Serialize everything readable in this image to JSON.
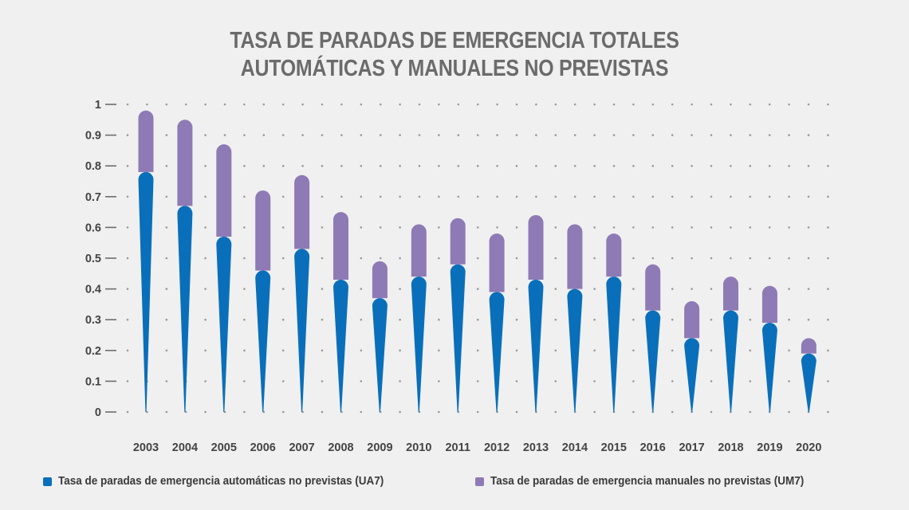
{
  "chart_data": {
    "type": "bar",
    "title_lines": [
      "TASA DE PARADAS DE EMERGENCIA TOTALES",
      "AUTOMÁTICAS Y MANUALES NO PREVISTAS"
    ],
    "xlabel": "",
    "ylabel": "",
    "ylim": [
      0,
      1
    ],
    "yticks": [
      "0",
      "0.1",
      "0.2",
      "0.3",
      "0.4",
      "0.5",
      "0.6",
      "0.7",
      "0.8",
      "0.9",
      "1"
    ],
    "grid": "dotted",
    "stacked": true,
    "categories": [
      "2003",
      "2004",
      "2005",
      "2006",
      "2007",
      "2008",
      "2009",
      "2010",
      "2011",
      "2012",
      "2013",
      "2014",
      "2015",
      "2016",
      "2017",
      "2018",
      "2019",
      "2020"
    ],
    "series": [
      {
        "name": "Tasa de paradas de emergencia automáticas no previstas (UA7)",
        "color": "#0a6fba",
        "values": [
          0.78,
          0.67,
          0.57,
          0.46,
          0.53,
          0.43,
          0.37,
          0.44,
          0.48,
          0.39,
          0.43,
          0.4,
          0.44,
          0.33,
          0.24,
          0.33,
          0.29,
          0.19
        ]
      },
      {
        "name": "Tasa de paradas de emergencia manuales no previstas (UM7)",
        "color": "#8e7ab5",
        "values": [
          0.2,
          0.28,
          0.3,
          0.26,
          0.24,
          0.22,
          0.12,
          0.17,
          0.15,
          0.19,
          0.21,
          0.21,
          0.14,
          0.15,
          0.12,
          0.11,
          0.12,
          0.05
        ]
      }
    ],
    "legend": "bottom"
  },
  "colors": {
    "axis_text": "#444444",
    "grid_dot": "#9a9a9a",
    "title": "#6b6b6b"
  }
}
